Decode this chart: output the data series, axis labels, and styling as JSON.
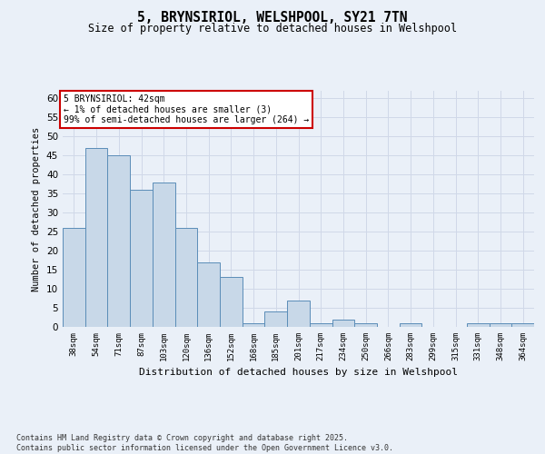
{
  "title_line1": "5, BRYNSIRIOL, WELSHPOOL, SY21 7TN",
  "title_line2": "Size of property relative to detached houses in Welshpool",
  "xlabel": "Distribution of detached houses by size in Welshpool",
  "ylabel": "Number of detached properties",
  "categories": [
    "38sqm",
    "54sqm",
    "71sqm",
    "87sqm",
    "103sqm",
    "120sqm",
    "136sqm",
    "152sqm",
    "168sqm",
    "185sqm",
    "201sqm",
    "217sqm",
    "234sqm",
    "250sqm",
    "266sqm",
    "283sqm",
    "299sqm",
    "315sqm",
    "331sqm",
    "348sqm",
    "364sqm"
  ],
  "values": [
    26,
    47,
    45,
    36,
    38,
    26,
    17,
    13,
    1,
    4,
    7,
    1,
    2,
    1,
    0,
    1,
    0,
    0,
    1,
    1,
    1
  ],
  "bar_color": "#c8d8e8",
  "bar_edge_color": "#5b8db8",
  "ylim": [
    0,
    62
  ],
  "yticks": [
    0,
    5,
    10,
    15,
    20,
    25,
    30,
    35,
    40,
    45,
    50,
    55,
    60
  ],
  "grid_color": "#d0d8e8",
  "annotation_text": "5 BRYNSIRIOL: 42sqm\n← 1% of detached houses are smaller (3)\n99% of semi-detached houses are larger (264) →",
  "annotation_box_color": "#ffffff",
  "annotation_box_edge": "#cc0000",
  "footnote": "Contains HM Land Registry data © Crown copyright and database right 2025.\nContains public sector information licensed under the Open Government Licence v3.0.",
  "bg_color": "#eaf0f8",
  "plot_bg_color": "#eaf0f8"
}
